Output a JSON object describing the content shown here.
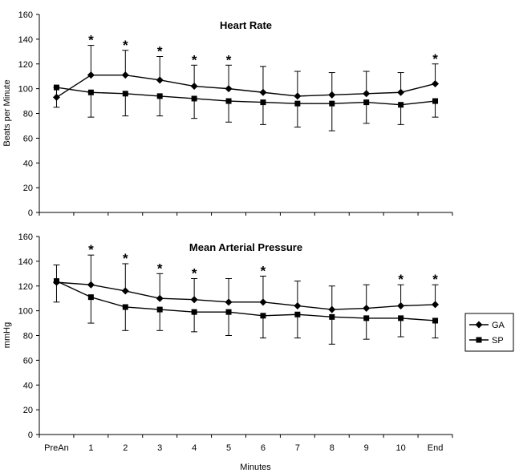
{
  "chart_data": [
    {
      "type": "line",
      "title": "Heart Rate",
      "ylabel": "Beats per Minute",
      "xlabel": "",
      "ylim": [
        0,
        160
      ],
      "yticks": [
        0,
        20,
        40,
        60,
        80,
        100,
        120,
        140,
        160
      ],
      "categories": [
        "PreAn",
        "1",
        "2",
        "3",
        "4",
        "5",
        "6",
        "7",
        "8",
        "9",
        "10",
        "End"
      ],
      "series": [
        {
          "name": "GA",
          "marker": "diamond",
          "values": [
            93,
            111,
            111,
            107,
            102,
            100,
            97,
            94,
            95,
            96,
            97,
            104
          ],
          "error_upper": [
            101,
            135,
            131,
            126,
            119,
            119,
            118,
            114,
            113,
            114,
            113,
            120
          ]
        },
        {
          "name": "SP",
          "marker": "square",
          "values": [
            101,
            97,
            96,
            94,
            92,
            90,
            89,
            88,
            88,
            89,
            87,
            90
          ],
          "error_lower": [
            85,
            77,
            78,
            78,
            76,
            73,
            71,
            69,
            66,
            72,
            71,
            77
          ]
        }
      ],
      "significant": [
        "1",
        "2",
        "3",
        "4",
        "5",
        "End"
      ],
      "significance_marker": "*"
    },
    {
      "type": "line",
      "title": "Mean Arterial Pressure",
      "ylabel": "mmHg",
      "xlabel": "Minutes",
      "ylim": [
        0,
        160
      ],
      "yticks": [
        0,
        20,
        40,
        60,
        80,
        100,
        120,
        140,
        160
      ],
      "categories": [
        "PreAn",
        "1",
        "2",
        "3",
        "4",
        "5",
        "6",
        "7",
        "8",
        "9",
        "10",
        "End"
      ],
      "series": [
        {
          "name": "GA",
          "marker": "diamond",
          "values": [
            123,
            121,
            116,
            110,
            109,
            107,
            107,
            104,
            101,
            102,
            104,
            105
          ],
          "error_upper": [
            137,
            145,
            138,
            130,
            126,
            126,
            128,
            124,
            120,
            121,
            121,
            121
          ]
        },
        {
          "name": "SP",
          "marker": "square",
          "values": [
            124,
            111,
            103,
            101,
            99,
            99,
            96,
            97,
            95,
            94,
            94,
            92
          ],
          "error_lower": [
            107,
            90,
            84,
            84,
            83,
            80,
            78,
            78,
            73,
            77,
            79,
            78
          ]
        }
      ],
      "significant": [
        "1",
        "2",
        "3",
        "4",
        "6",
        "10",
        "End"
      ],
      "significance_marker": "*"
    }
  ],
  "legend": {
    "placement": "right",
    "items": [
      {
        "label": "GA",
        "marker": "diamond"
      },
      {
        "label": "SP",
        "marker": "square"
      }
    ]
  },
  "colors": {
    "line": "#000000",
    "background": "#ffffff"
  }
}
